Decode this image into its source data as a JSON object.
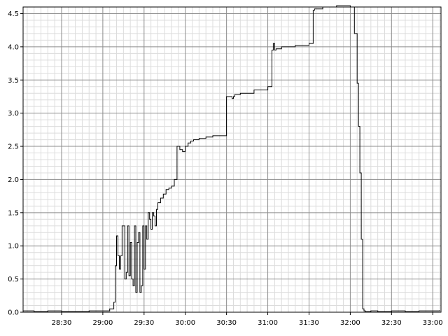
{
  "chart_data": {
    "type": "line",
    "step": true,
    "title": "",
    "xlabel": "",
    "ylabel": "",
    "x_unit": "mm:ss",
    "xlim": [
      "28:02",
      "33:06"
    ],
    "ylim": [
      0,
      4.6
    ],
    "x_ticks": [
      "28:30",
      "29:00",
      "29:30",
      "30:00",
      "30:30",
      "31:00",
      "31:30",
      "32:00",
      "32:30",
      "33:00"
    ],
    "y_ticks": [
      "0.0",
      "0.5",
      "1.0",
      "1.5",
      "2.0",
      "2.5",
      "3.0",
      "3.5",
      "4.0",
      "4.5"
    ],
    "grid": {
      "major": true,
      "minor": true
    },
    "series": [
      {
        "x": [
          "28:02",
          "28:10",
          "28:20",
          "28:30",
          "28:40",
          "28:50",
          "29:00",
          "29:05",
          "29:08",
          "29:09",
          "29:10",
          "29:11",
          "29:12",
          "29:13",
          "29:14",
          "29:15",
          "29:16",
          "29:17",
          "29:18",
          "29:19",
          "29:20",
          "29:21",
          "29:22",
          "29:23",
          "29:24",
          "29:25",
          "29:26",
          "29:27",
          "29:28",
          "29:29",
          "29:30",
          "29:31",
          "29:32",
          "29:33",
          "29:34",
          "29:35",
          "29:36",
          "29:37",
          "29:38",
          "29:39",
          "29:40",
          "29:42",
          "29:44",
          "29:46",
          "29:48",
          "29:50",
          "29:52",
          "29:54",
          "29:56",
          "29:58",
          "30:00",
          "30:02",
          "30:04",
          "30:06",
          "30:10",
          "30:15",
          "30:20",
          "30:30",
          "30:34",
          "30:35",
          "30:36",
          "30:40",
          "30:50",
          "31:00",
          "31:03",
          "31:04",
          "31:05",
          "31:06",
          "31:10",
          "31:20",
          "31:30",
          "31:33",
          "31:34",
          "31:40",
          "31:50",
          "31:59",
          "32:00",
          "32:01",
          "32:03",
          "32:05",
          "32:06",
          "32:07",
          "32:08",
          "32:09",
          "32:10",
          "32:11",
          "32:15",
          "32:20",
          "32:30",
          "32:40",
          "32:50",
          "33:00",
          "33:05"
        ],
        "y": [
          0.02,
          0.01,
          0.02,
          0.01,
          0.01,
          0.02,
          0.02,
          0.05,
          0.15,
          0.7,
          1.15,
          0.85,
          0.65,
          0.85,
          1.3,
          1.3,
          0.5,
          0.6,
          1.3,
          0.55,
          1.05,
          0.5,
          0.4,
          1.3,
          0.3,
          1.05,
          1.2,
          0.3,
          0.4,
          1.3,
          0.65,
          1.3,
          1.1,
          1.5,
          1.4,
          1.25,
          1.5,
          1.45,
          1.3,
          1.55,
          1.65,
          1.72,
          1.78,
          1.85,
          1.87,
          1.9,
          2.0,
          2.5,
          2.45,
          2.42,
          2.5,
          2.55,
          2.58,
          2.6,
          2.62,
          2.64,
          2.66,
          3.25,
          3.22,
          3.25,
          3.28,
          3.3,
          3.35,
          3.4,
          3.95,
          4.05,
          3.95,
          3.97,
          4.0,
          4.02,
          4.05,
          4.55,
          4.57,
          4.6,
          4.62,
          4.62,
          4.6,
          4.6,
          4.2,
          3.45,
          2.8,
          2.1,
          1.1,
          0.05,
          0.02,
          0.01,
          0.02,
          0.01,
          0.02,
          0.01,
          0.02,
          0.02,
          0.03
        ]
      }
    ]
  }
}
